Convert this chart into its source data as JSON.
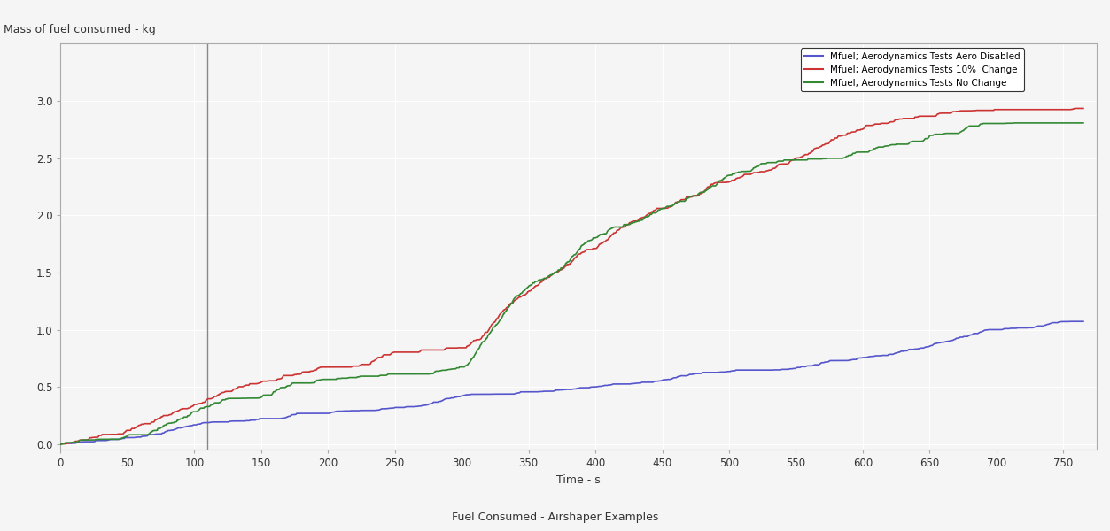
{
  "title_ylabel": "Mass of fuel consumed - kg",
  "xlabel": "Time - s",
  "subtitle": "Fuel Consumed - Airshaper Examples",
  "xlim": [
    0,
    775
  ],
  "ylim": [
    -0.05,
    3.5
  ],
  "yticks": [
    0,
    0.5,
    1.0,
    1.5,
    2.0,
    2.5,
    3.0
  ],
  "xticks": [
    0,
    50,
    100,
    150,
    200,
    250,
    300,
    350,
    400,
    450,
    500,
    550,
    600,
    650,
    700,
    750
  ],
  "vline_x": 110,
  "legend_labels": [
    "Mfuel; Aerodynamics Tests Aero Disabled",
    "Mfuel; Aerodynamics Tests 10%  Change",
    "Mfuel; Aerodynamics Tests No Change"
  ],
  "colors": {
    "aero_disabled": "#5555cc",
    "ten_percent": "#cc3333",
    "no_change": "#338833"
  },
  "background_color": "#f5f5f5",
  "grid_color": "#ffffff",
  "line_width": 1.2
}
